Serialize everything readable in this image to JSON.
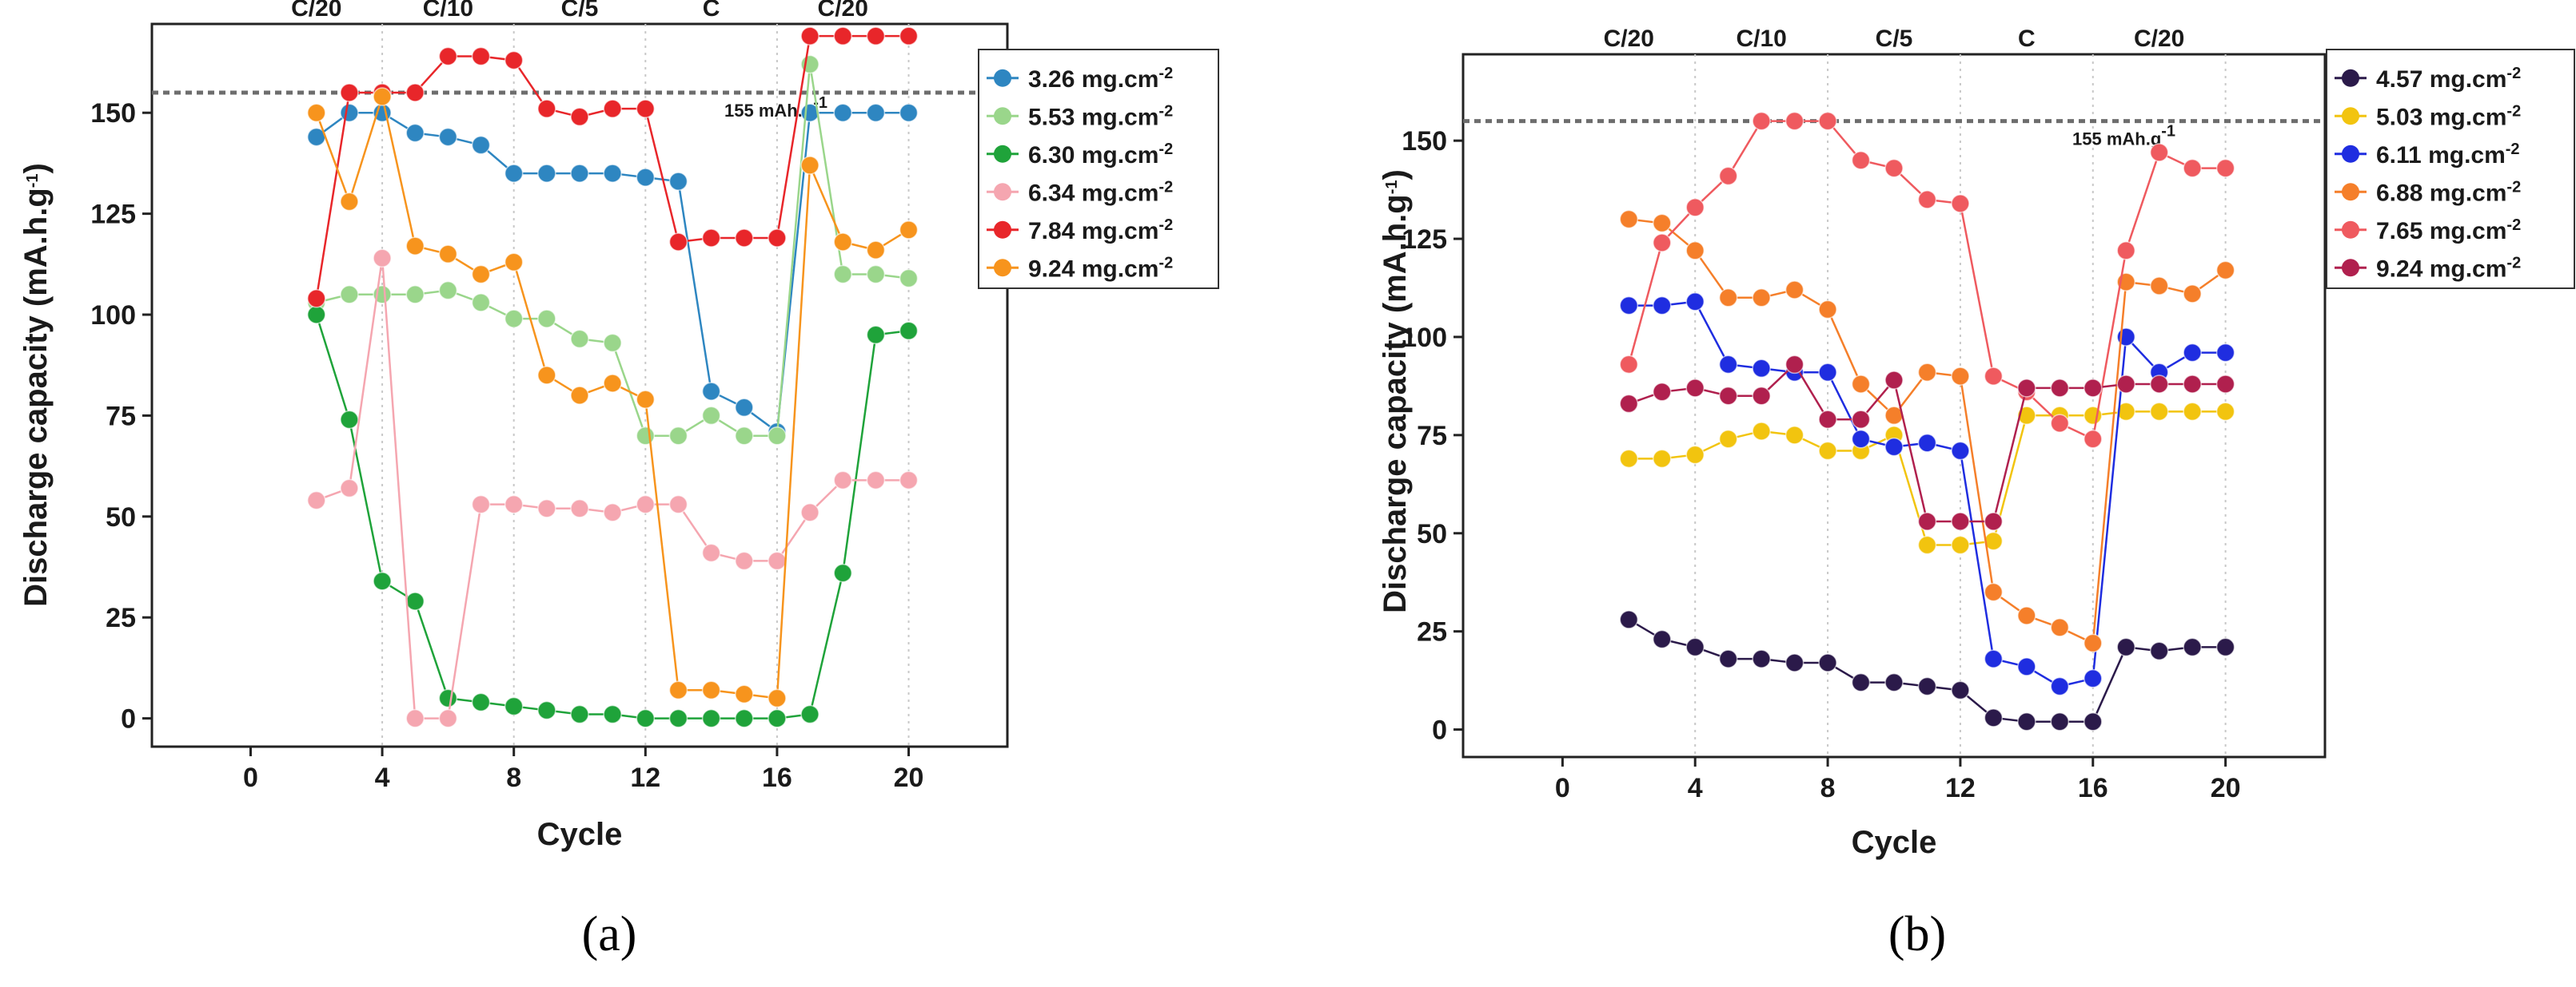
{
  "chart_data": [
    {
      "type": "line",
      "panel_label": "(a)",
      "xlabel": "Cycle",
      "ylabel": "Discharge capacity (mA.h.g",
      "ylabel_sup": "-1",
      "ylabel_tail": ")",
      "xlim": [
        -3,
        23
      ],
      "ylim": [
        -7,
        172
      ],
      "xticks": [
        0,
        4,
        8,
        12,
        16,
        20
      ],
      "yticks": [
        0,
        25,
        50,
        75,
        100,
        125,
        150
      ],
      "x_gridlines": [
        4,
        8,
        12,
        16,
        20
      ],
      "rate_labels": [
        {
          "text": "C/20",
          "x": 2
        },
        {
          "text": "C/10",
          "x": 6
        },
        {
          "text": "C/5",
          "x": 10
        },
        {
          "text": "C",
          "x": 14
        },
        {
          "text": "C/20",
          "x": 18
        }
      ],
      "reference": {
        "value": 155,
        "label": "155 mAh.g",
        "label_sup": "-1"
      },
      "legend_position": "top-right",
      "series": [
        {
          "name": "3.26 mg.cm",
          "sup": "-2",
          "color": "#2e86c1",
          "x": [
            2,
            3,
            4,
            5,
            6,
            7,
            8,
            9,
            10,
            11,
            12,
            13,
            14,
            15,
            16,
            17,
            18,
            19,
            20
          ],
          "y": [
            144,
            150,
            150,
            145,
            144,
            142,
            135,
            135,
            135,
            135,
            134,
            133,
            81,
            77,
            71,
            150,
            150,
            150,
            150
          ]
        },
        {
          "name": "5.53 mg.cm",
          "sup": "-2",
          "color": "#9ad68b",
          "x": [
            2,
            3,
            4,
            5,
            6,
            7,
            8,
            9,
            10,
            11,
            12,
            13,
            14,
            15,
            16,
            17,
            18,
            19,
            20
          ],
          "y": [
            103,
            105,
            105,
            105,
            106,
            103,
            99,
            99,
            94,
            93,
            70,
            70,
            75,
            70,
            70,
            162,
            110,
            110,
            109
          ]
        },
        {
          "name": "6.30 mg.cm",
          "sup": "-2",
          "color": "#1fa33a",
          "x": [
            2,
            3,
            4,
            5,
            6,
            7,
            8,
            9,
            10,
            11,
            12,
            13,
            14,
            15,
            16,
            17,
            18,
            19,
            20
          ],
          "y": [
            100,
            74,
            34,
            29,
            5,
            4,
            3,
            2,
            1,
            1,
            0,
            0,
            0,
            0,
            0,
            1,
            36,
            95,
            96
          ]
        },
        {
          "name": "6.34 mg.cm",
          "sup": "-2",
          "color": "#f5a6b0",
          "x": [
            2,
            3,
            4,
            5,
            6,
            7,
            8,
            9,
            10,
            11,
            12,
            13,
            14,
            15,
            16,
            17,
            18,
            19,
            20
          ],
          "y": [
            54,
            57,
            114,
            0,
            0,
            53,
            53,
            52,
            52,
            51,
            53,
            53,
            41,
            39,
            39,
            51,
            59,
            59,
            59
          ]
        },
        {
          "name": "7.84 mg.cm",
          "sup": "-2",
          "color": "#e8262a",
          "x": [
            2,
            3,
            4,
            5,
            6,
            7,
            8,
            9,
            10,
            11,
            12,
            13,
            14,
            15,
            16,
            17,
            18,
            19,
            20
          ],
          "y": [
            104,
            155,
            155,
            155,
            164,
            164,
            163,
            151,
            149,
            151,
            151,
            118,
            119,
            119,
            119,
            169,
            169,
            169,
            169
          ]
        },
        {
          "name": "9.24 mg.cm",
          "sup": "-2",
          "color": "#f7941d",
          "x": [
            2,
            3,
            4,
            5,
            6,
            7,
            8,
            9,
            10,
            11,
            12,
            13,
            14,
            15,
            16,
            17,
            18,
            19,
            20
          ],
          "y": [
            150,
            128,
            154,
            117,
            115,
            110,
            113,
            85,
            80,
            83,
            79,
            7,
            7,
            6,
            5,
            137,
            118,
            116,
            121
          ]
        }
      ]
    },
    {
      "type": "line",
      "panel_label": "(b)",
      "xlabel": "Cycle",
      "ylabel": "Discharge capacity (mA.h.g",
      "ylabel_sup": "-1",
      "ylabel_tail": ")",
      "xlim": [
        -3,
        23
      ],
      "ylim": [
        -7,
        172
      ],
      "xticks": [
        0,
        4,
        8,
        12,
        16,
        20
      ],
      "yticks": [
        0,
        25,
        50,
        75,
        100,
        125,
        150
      ],
      "x_gridlines": [
        4,
        8,
        12,
        16,
        20
      ],
      "rate_labels": [
        {
          "text": "C/20",
          "x": 2
        },
        {
          "text": "C/10",
          "x": 6
        },
        {
          "text": "C/5",
          "x": 10
        },
        {
          "text": "C",
          "x": 14
        },
        {
          "text": "C/20",
          "x": 18
        }
      ],
      "reference": {
        "value": 155,
        "label": "155 mAh.g",
        "label_sup": "-1"
      },
      "legend_position": "top-right",
      "series": [
        {
          "name": "4.57 mg.cm",
          "sup": "-2",
          "color": "#2b1a4a",
          "x": [
            2,
            3,
            4,
            5,
            6,
            7,
            8,
            9,
            10,
            11,
            12,
            13,
            14,
            15,
            16,
            17,
            18,
            19,
            20
          ],
          "y": [
            28,
            23,
            21,
            18,
            18,
            17,
            17,
            12,
            12,
            11,
            10,
            3,
            2,
            2,
            2,
            21,
            20,
            21,
            21
          ]
        },
        {
          "name": "5.03 mg.cm",
          "sup": "-2",
          "color": "#f2c40f",
          "x": [
            2,
            3,
            4,
            5,
            6,
            7,
            8,
            9,
            10,
            11,
            12,
            13,
            14,
            15,
            16,
            17,
            18,
            19,
            20
          ],
          "y": [
            69,
            69,
            70,
            74,
            76,
            75,
            71,
            71,
            75,
            47,
            47,
            48,
            80,
            80,
            80,
            81,
            81,
            81,
            81
          ]
        },
        {
          "name": "6.11 mg.cm",
          "sup": "-2",
          "color": "#1f2de0",
          "x": [
            2,
            3,
            4,
            5,
            6,
            7,
            8,
            9,
            10,
            11,
            12,
            13,
            14,
            15,
            16,
            17,
            18,
            19,
            20
          ],
          "y": [
            108,
            108,
            109,
            93,
            92,
            91,
            91,
            74,
            72,
            73,
            71,
            18,
            16,
            11,
            13,
            100,
            91,
            96,
            96
          ]
        },
        {
          "name": "6.88 mg.cm",
          "sup": "-2",
          "color": "#f57f2a",
          "x": [
            2,
            3,
            4,
            5,
            6,
            7,
            8,
            9,
            10,
            11,
            12,
            13,
            14,
            15,
            16,
            17,
            18,
            19,
            20
          ],
          "y": [
            130,
            129,
            122,
            110,
            110,
            112,
            107,
            88,
            80,
            91,
            90,
            35,
            29,
            26,
            22,
            114,
            113,
            111,
            117
          ]
        },
        {
          "name": "7.65 mg.cm",
          "sup": "-2",
          "color": "#ef5a5f",
          "x": [
            2,
            3,
            4,
            5,
            6,
            7,
            8,
            9,
            10,
            11,
            12,
            13,
            14,
            15,
            16,
            17,
            18,
            19,
            20
          ],
          "y": [
            93,
            124,
            133,
            141,
            155,
            155,
            155,
            145,
            143,
            135,
            134,
            90,
            86,
            78,
            74,
            122,
            147,
            143,
            143
          ]
        },
        {
          "name": "9.24 mg.cm",
          "sup": "-2",
          "color": "#b0204e",
          "x": [
            2,
            3,
            4,
            5,
            6,
            7,
            8,
            9,
            10,
            11,
            12,
            13,
            14,
            15,
            16,
            17,
            18,
            19,
            20
          ],
          "y": [
            83,
            86,
            87,
            85,
            85,
            93,
            79,
            79,
            89,
            53,
            53,
            53,
            87,
            87,
            87,
            88,
            88,
            88,
            88
          ]
        }
      ]
    }
  ]
}
